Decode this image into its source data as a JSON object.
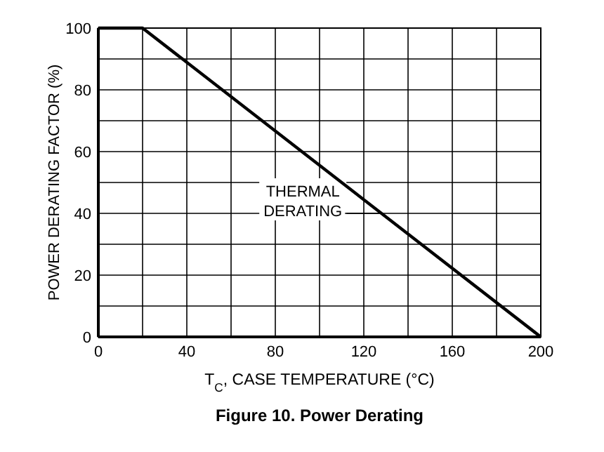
{
  "chart_data": {
    "type": "line",
    "title": "Figure 10. Power Derating",
    "xlabel": "T$_{C}$, CASE TEMPERATURE (°C)",
    "ylabel": "POWER DERATING FACTOR (%)",
    "x": [
      0,
      20,
      200
    ],
    "series": [
      {
        "color": "#000000",
        "values": [
          100,
          100,
          0
        ]
      }
    ],
    "xlim": [
      0,
      200
    ],
    "ylim": [
      0,
      100
    ],
    "xticks": [
      0,
      {
        "value": 20,
        "label": null
      },
      40,
      {
        "value": 60,
        "label": null
      },
      80,
      {
        "value": 100,
        "label": null
      },
      120,
      {
        "value": 140,
        "label": null
      },
      160,
      {
        "value": 180,
        "label": null
      },
      200
    ],
    "yticks": [
      0,
      {
        "value": 10,
        "label": null
      },
      20,
      {
        "value": 30,
        "label": null
      },
      40,
      {
        "value": 50,
        "label": null
      },
      60,
      {
        "value": 70,
        "label": null
      },
      80,
      {
        "value": 90,
        "label": null
      },
      100
    ],
    "grid": true,
    "marker": "none",
    "line_style": "solid",
    "annotations": [
      {
        "text": "THERMAL\nDERATING",
        "x": 128,
        "y": 40
      }
    ]
  }
}
